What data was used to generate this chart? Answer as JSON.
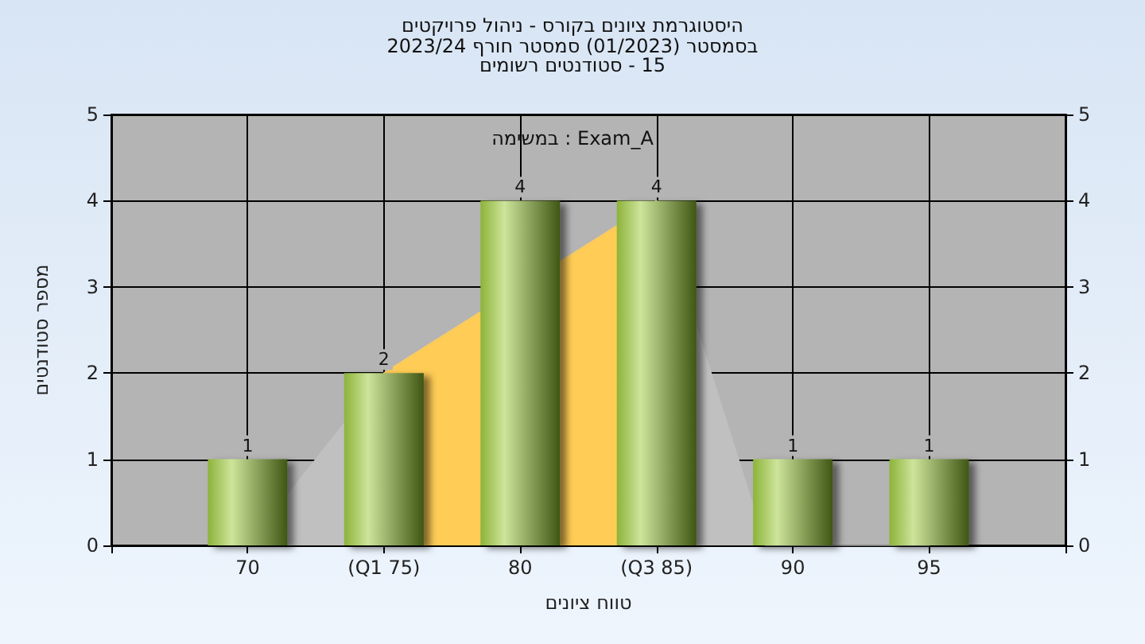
{
  "chart_data": {
    "type": "bar",
    "title": "היסטוגרמת ציונים בקורס - ניהול פרויקטים\nבסמסטר  (01/2023)  סמסטר חורף 2023/24\n15 - סטודנטים רשומים",
    "xlabel": "טווח ציונים",
    "ylabel": "מספר סטודנטים",
    "annotations": [
      "במשימה : Exam_A"
    ],
    "xlim": [
      65,
      100
    ],
    "xticks": [
      {
        "value": 65,
        "label": null
      },
      70,
      {
        "value": 75,
        "label": "(Q1 75)"
      },
      80,
      {
        "value": 85,
        "label": "(Q3 85)"
      },
      90,
      95,
      {
        "value": 100,
        "label": null
      }
    ],
    "ylim": [
      0,
      5
    ],
    "yticks": [
      0,
      1,
      2,
      3,
      4,
      5
    ],
    "y2lim": [
      0,
      5
    ],
    "y2ticks": [
      0,
      1,
      2,
      3,
      4,
      5
    ],
    "grid": true,
    "series": [
      {
        "type": "area",
        "color": "#c0c0c0",
        "x": [
          70,
          75,
          85,
          89,
          95
        ],
        "values": [
          0,
          2,
          4,
          0,
          0
        ]
      },
      {
        "type": "area",
        "color": "#ffcc55",
        "x": [
          75,
          85
        ],
        "values": [
          2,
          4
        ]
      },
      {
        "color": "#8db33a",
        "x": [
          70,
          75,
          80,
          85,
          90,
          95
        ],
        "values": [
          1,
          2,
          4,
          4,
          1,
          1
        ],
        "value_labels": [
          "1",
          "2",
          "4",
          "4",
          "1",
          "1"
        ]
      }
    ]
  }
}
